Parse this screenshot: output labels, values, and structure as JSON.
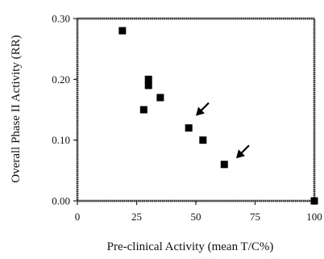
{
  "chart_data": {
    "type": "scatter",
    "title": "",
    "xlabel": "Pre-clinical Activity (mean T/C%)",
    "ylabel": "Overall Phase II Activity (RR)",
    "xlim": [
      0,
      100
    ],
    "ylim": [
      0,
      0.3
    ],
    "x_ticks": [
      0,
      25,
      50,
      75,
      100
    ],
    "x_tick_labels": [
      "0",
      "25",
      "50",
      "75",
      "100"
    ],
    "y_ticks": [
      0,
      0.1,
      0.2,
      0.3
    ],
    "y_tick_labels": [
      "0.00",
      "0.10",
      "0.20",
      "0.30"
    ],
    "grid": false,
    "legend": "none",
    "marker": "square",
    "marker_color": "#000000",
    "series": [
      {
        "points": [
          {
            "x": 19,
            "y": 0.28
          },
          {
            "x": 28,
            "y": 0.15
          },
          {
            "x": 30,
            "y": 0.2
          },
          {
            "x": 30,
            "y": 0.19
          },
          {
            "x": 35,
            "y": 0.17
          },
          {
            "x": 47,
            "y": 0.12
          },
          {
            "x": 53,
            "y": 0.1
          },
          {
            "x": 62,
            "y": 0.06
          },
          {
            "x": 100,
            "y": 0.0
          }
        ]
      }
    ],
    "annotations": [
      {
        "type": "arrow",
        "points_to": {
          "x": 50,
          "y": 0.14
        }
      },
      {
        "type": "arrow",
        "points_to": {
          "x": 67,
          "y": 0.07
        }
      }
    ]
  }
}
